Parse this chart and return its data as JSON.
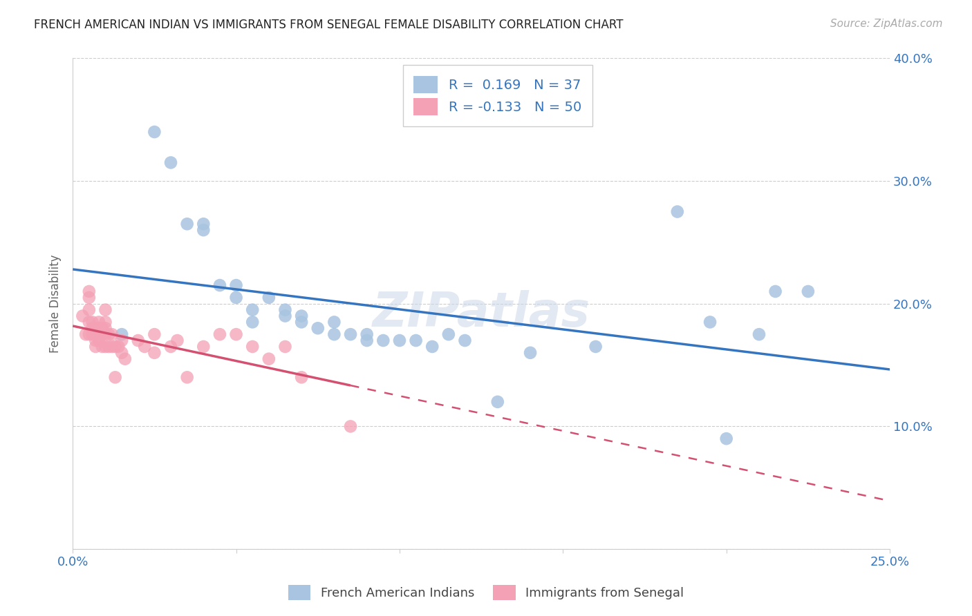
{
  "title": "FRENCH AMERICAN INDIAN VS IMMIGRANTS FROM SENEGAL FEMALE DISABILITY CORRELATION CHART",
  "source": "Source: ZipAtlas.com",
  "ylabel": "Female Disability",
  "xlim": [
    0.0,
    0.25
  ],
  "ylim": [
    0.0,
    0.4
  ],
  "xticks": [
    0.0,
    0.05,
    0.1,
    0.15,
    0.2,
    0.25
  ],
  "yticks": [
    0.0,
    0.1,
    0.2,
    0.3,
    0.4
  ],
  "blue_R": 0.169,
  "blue_N": 37,
  "pink_R": -0.133,
  "pink_N": 50,
  "blue_color": "#a8c4e0",
  "pink_color": "#f4a0b5",
  "blue_line_color": "#3575c0",
  "pink_line_color": "#d45070",
  "legend_label_blue": "French American Indians",
  "legend_label_pink": "Immigrants from Senegal",
  "watermark": "ZIPatlas",
  "blue_scatter_x": [
    0.015,
    0.025,
    0.03,
    0.035,
    0.04,
    0.04,
    0.045,
    0.05,
    0.05,
    0.055,
    0.055,
    0.06,
    0.065,
    0.065,
    0.07,
    0.07,
    0.075,
    0.08,
    0.08,
    0.085,
    0.09,
    0.09,
    0.095,
    0.1,
    0.105,
    0.11,
    0.115,
    0.12,
    0.13,
    0.14,
    0.16,
    0.185,
    0.195,
    0.2,
    0.21,
    0.215,
    0.225
  ],
  "blue_scatter_y": [
    0.175,
    0.34,
    0.315,
    0.265,
    0.265,
    0.26,
    0.215,
    0.215,
    0.205,
    0.185,
    0.195,
    0.205,
    0.195,
    0.19,
    0.19,
    0.185,
    0.18,
    0.185,
    0.175,
    0.175,
    0.175,
    0.17,
    0.17,
    0.17,
    0.17,
    0.165,
    0.175,
    0.17,
    0.12,
    0.16,
    0.165,
    0.275,
    0.185,
    0.09,
    0.175,
    0.21,
    0.21
  ],
  "pink_scatter_x": [
    0.003,
    0.004,
    0.005,
    0.005,
    0.005,
    0.005,
    0.005,
    0.006,
    0.006,
    0.006,
    0.007,
    0.007,
    0.007,
    0.007,
    0.008,
    0.008,
    0.008,
    0.009,
    0.009,
    0.009,
    0.01,
    0.01,
    0.01,
    0.01,
    0.01,
    0.011,
    0.011,
    0.012,
    0.012,
    0.013,
    0.013,
    0.014,
    0.015,
    0.015,
    0.016,
    0.02,
    0.022,
    0.025,
    0.025,
    0.03,
    0.032,
    0.035,
    0.04,
    0.045,
    0.05,
    0.055,
    0.06,
    0.065,
    0.07,
    0.085
  ],
  "pink_scatter_y": [
    0.19,
    0.175,
    0.21,
    0.205,
    0.195,
    0.185,
    0.175,
    0.185,
    0.18,
    0.175,
    0.18,
    0.175,
    0.17,
    0.165,
    0.185,
    0.18,
    0.17,
    0.18,
    0.175,
    0.165,
    0.195,
    0.185,
    0.18,
    0.175,
    0.165,
    0.175,
    0.165,
    0.175,
    0.165,
    0.165,
    0.14,
    0.165,
    0.17,
    0.16,
    0.155,
    0.17,
    0.165,
    0.175,
    0.16,
    0.165,
    0.17,
    0.14,
    0.165,
    0.175,
    0.175,
    0.165,
    0.155,
    0.165,
    0.14,
    0.1
  ]
}
